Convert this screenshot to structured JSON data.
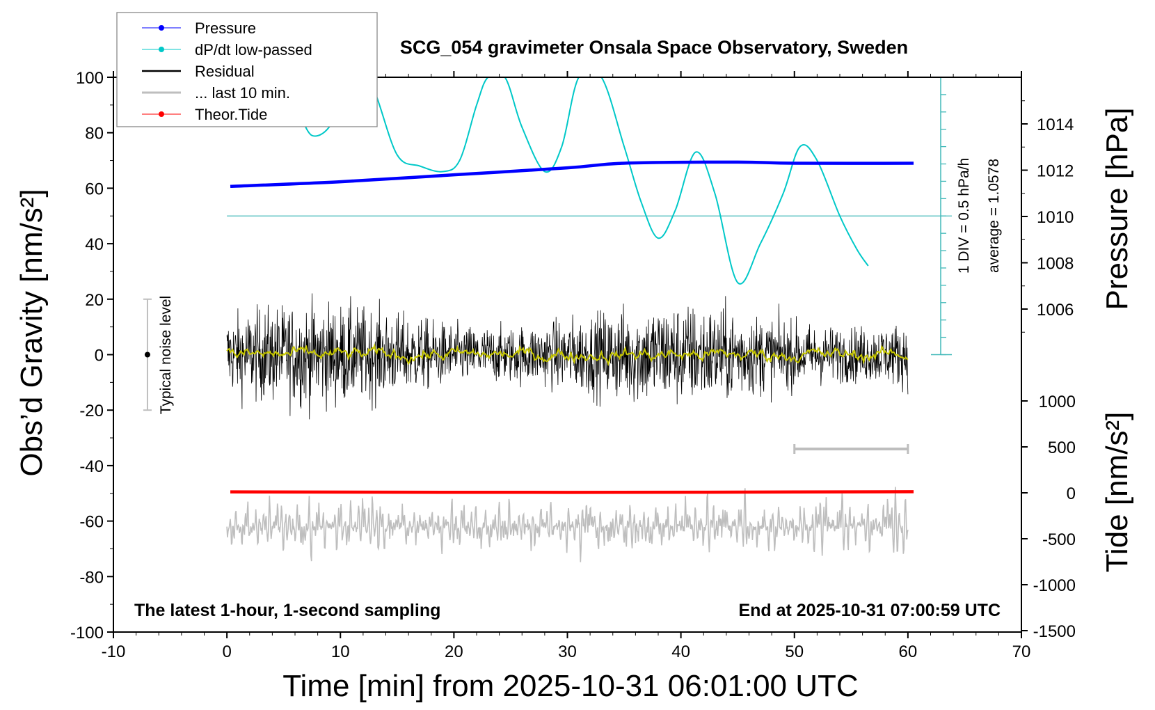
{
  "chart_data": {
    "type": "line",
    "title": "SCG_054 gravimeter Onsala Space Observatory, Sweden",
    "xlabel": "Time [min] from 2025-10-31 06:01:00 UTC",
    "ylabel_left": "Obs’d Gravity [nm/s²]",
    "ylabel_right_top": "Pressure [hPa]",
    "ylabel_right_bottom": "Tide [nm/s²]",
    "xlim": [
      -10,
      70
    ],
    "ylim": [
      -100,
      100
    ],
    "pressure_lim": [
      1008,
      1016
    ],
    "tide_lim": [
      -1500,
      1500
    ],
    "x_ticks": [
      "-10",
      "0",
      "10",
      "20",
      "30",
      "40",
      "50",
      "60",
      "70"
    ],
    "y_ticks": [
      "100",
      "80",
      "60",
      "40",
      "20",
      "0",
      "-20",
      "-40",
      "-60",
      "-80",
      "-100"
    ],
    "pressure_ticks": [
      "1014",
      "1012",
      "1010",
      "1008",
      "1006"
    ],
    "tide_ticks": [
      "1000",
      "500",
      "0",
      "-500",
      "-1000",
      "-1500"
    ],
    "annotation_left": "The latest 1-hour, 1-second sampling",
    "annotation_right": "End at 2025-10-31 07:00:59 UTC",
    "noise_label": "Typical noise level",
    "div_label": "1 DIV = 0.5 hPa/h",
    "average_label": "average = 1.0578",
    "legend": {
      "placement": "top-left",
      "entries": [
        {
          "label": "Pressure",
          "color": "#0000ff",
          "marker": true
        },
        {
          "label": "dP/dt low-passed",
          "color": "#00c8c8",
          "marker": true
        },
        {
          "label": "Residual",
          "color": "#000000",
          "marker": false
        },
        {
          "label": "... last 10 min.",
          "color": "#bebebe",
          "marker": false
        },
        {
          "label": "Theor.Tide",
          "color": "#ff0000",
          "marker": true
        }
      ]
    },
    "series": [
      {
        "name": "Pressure",
        "axis": "pressure",
        "color": "#0000ff",
        "x": [
          0.3,
          10,
          20,
          30,
          35,
          45,
          50,
          60.5
        ],
        "y": [
          1011.3,
          1011.5,
          1011.8,
          1012.1,
          1012.3,
          1012.35,
          1012.3,
          1012.3
        ]
      },
      {
        "name": "dP/dt low-passed",
        "axis": "left",
        "color": "#00c8c8",
        "baseline": 50,
        "x": [
          6.5,
          7.5,
          9,
          10.5,
          11.5,
          13,
          15,
          17,
          19,
          20.5,
          22,
          23,
          24.5,
          26,
          28,
          29.5,
          31,
          33,
          35,
          36.5,
          38,
          39.5,
          41.3,
          43,
          45,
          47,
          49,
          50.5,
          52,
          54,
          55.5,
          56.5
        ],
        "y": [
          86,
          79,
          82,
          95,
          104,
          95,
          72,
          68,
          66,
          70,
          90,
          100,
          100,
          82,
          66,
          75,
          100,
          100,
          75,
          55,
          42,
          52,
          73,
          58,
          26,
          40,
          58,
          75,
          70,
          50,
          38,
          32
        ]
      },
      {
        "name": "Residual",
        "axis": "left",
        "color": "#000000",
        "x_range": [
          0,
          60
        ],
        "amplitude": 20,
        "sampling_s": 1
      },
      {
        "name": "Residual smoothed",
        "axis": "left",
        "color": "#c8c800",
        "x_range": [
          0,
          60
        ],
        "amplitude": 2
      },
      {
        "name": "... last 10 min.",
        "axis": "left",
        "color": "#bebebe",
        "x_range": [
          0,
          60
        ],
        "center": -62,
        "amplitude": 20
      },
      {
        "name": "Theor.Tide",
        "axis": "tide",
        "color": "#ff0000",
        "x": [
          0.3,
          30,
          60.5
        ],
        "y": [
          10,
          5,
          12
        ]
      }
    ],
    "noise_bar": {
      "x": -7,
      "y_range": [
        -20,
        20
      ]
    },
    "scale_bar_minutes": [
      50,
      60
    ],
    "grid": false
  }
}
